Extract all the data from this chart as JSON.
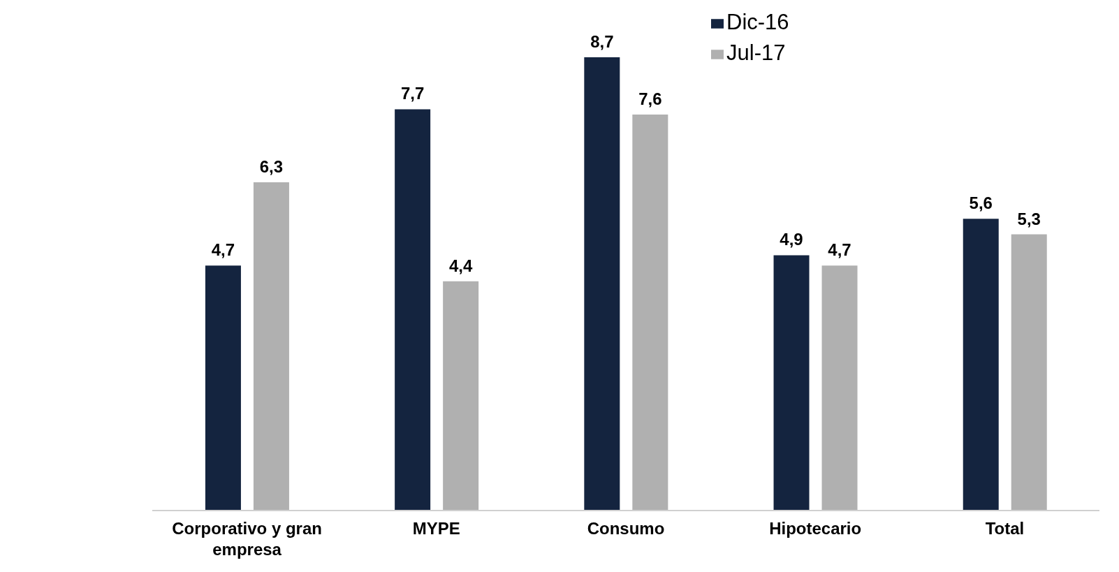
{
  "chart_data": {
    "type": "bar",
    "categories": [
      "Corporativo y gran empresa",
      "MYPE",
      "Consumo",
      "Hipotecario",
      "Total"
    ],
    "series": [
      {
        "name": "Dic-16",
        "color": "#14243f",
        "values": [
          4.7,
          7.7,
          8.7,
          4.9,
          5.6
        ],
        "value_labels": [
          "4,7",
          "7,7",
          "8,7",
          "4,9",
          "5,6"
        ]
      },
      {
        "name": "Jul-17",
        "color": "#b0b0b0",
        "values": [
          6.3,
          4.4,
          7.6,
          4.7,
          5.3
        ],
        "value_labels": [
          "6,3",
          "4,4",
          "7,6",
          "4,7",
          "5,3"
        ]
      }
    ],
    "legend": "top",
    "grid": false
  }
}
